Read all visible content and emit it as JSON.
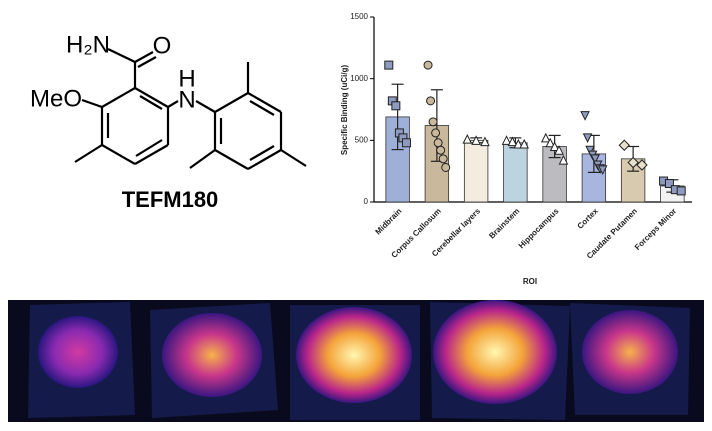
{
  "molecule": {
    "amine": "H₂N",
    "oxygen": "O",
    "nitrogen": "N",
    "hydrogen": "H",
    "methoxy": "MeO",
    "name": "TEFM180"
  },
  "chart_data": {
    "type": "bar",
    "ylabel": "Specific Binding (uCi/g)",
    "xlabel": "ROI",
    "categories": [
      "Midbrain",
      "Corpus Callosum",
      "Cerebellar layers",
      "Brainstem",
      "Hippocampus",
      "Cortex",
      "Caudate Putamen",
      "Forceps Minor"
    ],
    "values": [
      690,
      620,
      500,
      480,
      450,
      390,
      350,
      130
    ],
    "errors": [
      265,
      290,
      20,
      40,
      90,
      150,
      100,
      50
    ],
    "colors": [
      "#9fb0d8",
      "#c9b89b",
      "#f3ecdf",
      "#bcd3e0",
      "#bcbcc0",
      "#a8b5de",
      "#d7caae",
      "#f2f2f2"
    ],
    "markers": [
      "square",
      "circle",
      "triangle",
      "triangle",
      "triangle",
      "triangle-down",
      "diamond",
      "square"
    ],
    "points": [
      [
        1110,
        820,
        780,
        560,
        520,
        480
      ],
      [
        1110,
        820,
        650,
        560,
        480,
        420,
        350,
        280
      ],
      [
        510,
        500,
        490
      ],
      [
        500,
        490,
        470,
        470
      ],
      [
        520,
        480,
        450,
        420,
        340
      ],
      [
        700,
        520,
        420,
        380,
        350,
        300,
        270,
        260
      ],
      [
        460,
        320,
        300
      ],
      [
        170,
        150,
        100,
        90
      ]
    ],
    "ylim": [
      0,
      1500
    ],
    "yticks": [
      0,
      500,
      1000,
      1500
    ]
  }
}
